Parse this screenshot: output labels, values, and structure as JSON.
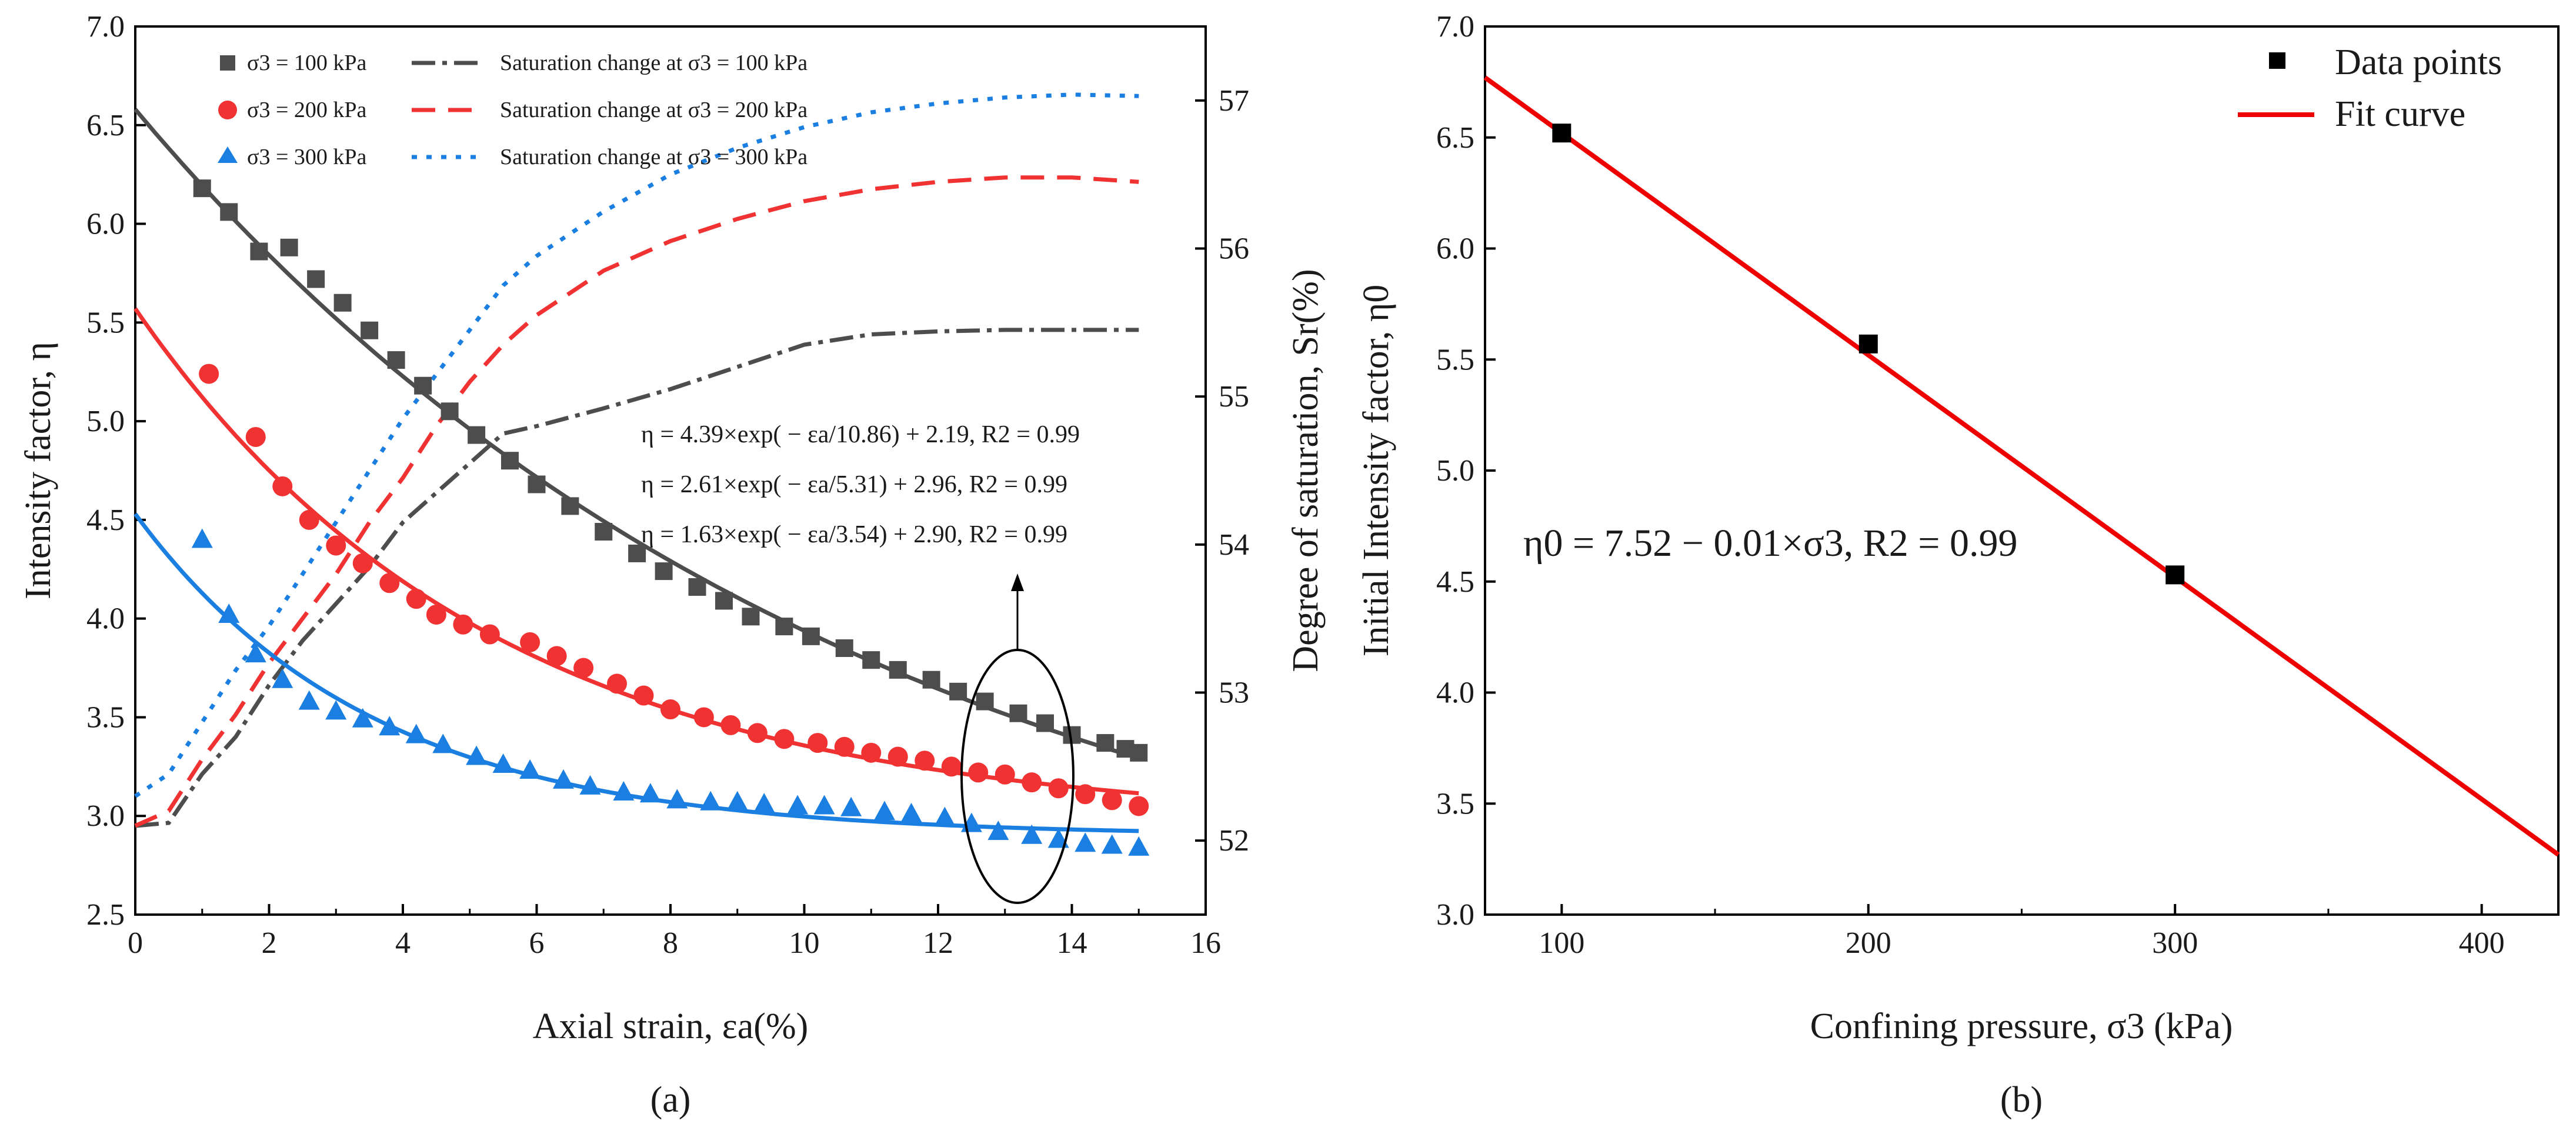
{
  "chart_data": [
    {
      "id": "a",
      "type": "scatter",
      "panel_label": "(a)",
      "xlabel": "Axial strain, εa(%)",
      "ylabel": "Intensity factor, η",
      "y2label": "Degree of saturation, Sr(%)",
      "xlim": [
        0,
        16
      ],
      "ylim": [
        2.5,
        7.0
      ],
      "y2lim": [
        51.5,
        57.5
      ],
      "xticks": [
        "0",
        "2",
        "4",
        "6",
        "8",
        "10",
        "12",
        "14",
        "16"
      ],
      "yticks": [
        "2.5",
        "3.0",
        "3.5",
        "4.0",
        "4.5",
        "5.0",
        "5.5",
        "6.0",
        "6.5",
        "7.0"
      ],
      "y2ticks": [
        "52",
        "53",
        "54",
        "55",
        "56",
        "57"
      ],
      "legend": [
        {
          "label": "σ3 = 100 kPa",
          "marker": "square",
          "color": "#4d4d4d"
        },
        {
          "label": "Saturation change at σ3 = 100 kPa",
          "style": "dash-dot",
          "color": "#4d4d4d"
        },
        {
          "label": "σ3 = 200 kPa",
          "marker": "circle",
          "color": "#f03232"
        },
        {
          "label": "Saturation change at σ3 = 200 kPa",
          "style": "dashed",
          "color": "#f03232"
        },
        {
          "label": "σ3 = 300 kPa",
          "marker": "triangle",
          "color": "#1a7fe0"
        },
        {
          "label": "Saturation change at σ3 = 300 kPa",
          "style": "dotted",
          "color": "#1a7fe0"
        }
      ],
      "series": [
        {
          "name": "σ3 = 100 kPa",
          "color": "#4d4d4d",
          "marker": "square",
          "x": [
            1.0,
            1.4,
            1.85,
            2.3,
            2.7,
            3.1,
            3.5,
            3.9,
            4.3,
            4.7,
            5.1,
            5.6,
            6.0,
            6.5,
            7.0,
            7.5,
            7.9,
            8.4,
            8.8,
            9.2,
            9.7,
            10.1,
            10.6,
            11.0,
            11.4,
            11.9,
            12.3,
            12.7,
            13.2,
            13.6,
            14.0,
            14.5,
            14.8,
            15.0
          ],
          "y": [
            6.18,
            6.06,
            5.86,
            5.88,
            5.72,
            5.6,
            5.46,
            5.31,
            5.18,
            5.05,
            4.93,
            4.8,
            4.68,
            4.57,
            4.44,
            4.33,
            4.24,
            4.16,
            4.09,
            4.01,
            3.96,
            3.91,
            3.85,
            3.79,
            3.74,
            3.69,
            3.63,
            3.58,
            3.52,
            3.47,
            3.41,
            3.37,
            3.34,
            3.32
          ],
          "fit": {
            "a": 4.39,
            "b": 10.86,
            "c": 2.19
          }
        },
        {
          "name": "σ3 = 200 kPa",
          "color": "#f03232",
          "marker": "circle",
          "x": [
            1.1,
            1.8,
            2.2,
            2.6,
            3.0,
            3.4,
            3.8,
            4.2,
            4.5,
            4.9,
            5.3,
            5.9,
            6.3,
            6.7,
            7.2,
            7.6,
            8.0,
            8.5,
            8.9,
            9.3,
            9.7,
            10.2,
            10.6,
            11.0,
            11.4,
            11.8,
            12.2,
            12.6,
            13.0,
            13.4,
            13.8,
            14.2,
            14.6,
            15.0
          ],
          "y": [
            5.24,
            4.92,
            4.67,
            4.5,
            4.37,
            4.28,
            4.18,
            4.1,
            4.02,
            3.97,
            3.92,
            3.88,
            3.81,
            3.75,
            3.67,
            3.61,
            3.54,
            3.5,
            3.46,
            3.42,
            3.39,
            3.37,
            3.35,
            3.32,
            3.3,
            3.28,
            3.25,
            3.22,
            3.21,
            3.17,
            3.14,
            3.11,
            3.08,
            3.05
          ],
          "fit": {
            "a": 2.61,
            "b": 5.31,
            "c": 2.96
          }
        },
        {
          "name": "σ3 = 300 kPa",
          "color": "#1a7fe0",
          "marker": "triangle",
          "x": [
            1.0,
            1.4,
            1.8,
            2.2,
            2.6,
            3.0,
            3.4,
            3.8,
            4.2,
            4.6,
            5.1,
            5.5,
            5.9,
            6.4,
            6.8,
            7.3,
            7.7,
            8.1,
            8.6,
            9.0,
            9.4,
            9.9,
            10.3,
            10.7,
            11.2,
            11.6,
            12.1,
            12.5,
            12.9,
            13.4,
            13.8,
            14.2,
            14.6,
            15.0
          ],
          "y": [
            4.4,
            4.02,
            3.82,
            3.69,
            3.58,
            3.53,
            3.49,
            3.45,
            3.41,
            3.36,
            3.3,
            3.26,
            3.23,
            3.18,
            3.15,
            3.12,
            3.11,
            3.08,
            3.07,
            3.07,
            3.06,
            3.05,
            3.05,
            3.04,
            3.02,
            3.01,
            2.99,
            2.96,
            2.92,
            2.9,
            2.88,
            2.86,
            2.85,
            2.84
          ],
          "fit": {
            "a": 1.63,
            "b": 3.54,
            "c": 2.9
          }
        }
      ],
      "saturation_series": [
        {
          "name": "Saturation change at σ3 = 100 kPa",
          "color": "#4d4d4d",
          "style": "dash-dot",
          "x": [
            0,
            0.5,
            1.0,
            1.5,
            2.0,
            2.5,
            3.0,
            3.5,
            4.0,
            4.5,
            5.0,
            5.5,
            6.0,
            7.0,
            8.0,
            9.0,
            10.0,
            11.0,
            12.0,
            13.0,
            14.0,
            15.0
          ],
          "y": [
            52.1,
            52.12,
            52.45,
            52.7,
            53.05,
            53.35,
            53.6,
            53.85,
            54.15,
            54.35,
            54.55,
            54.75,
            54.8,
            54.92,
            55.05,
            55.2,
            55.35,
            55.42,
            55.44,
            55.45,
            55.45,
            55.45
          ]
        },
        {
          "name": "Saturation change at σ3 = 200 kPa",
          "color": "#f03232",
          "style": "dashed",
          "x": [
            0,
            0.5,
            1.0,
            1.5,
            2.0,
            2.5,
            3.0,
            3.5,
            4.0,
            4.5,
            5.0,
            5.5,
            6.0,
            7.0,
            8.0,
            9.0,
            10.0,
            11.0,
            12.0,
            13.0,
            14.0,
            15.0
          ],
          "y": [
            52.1,
            52.2,
            52.55,
            52.85,
            53.2,
            53.5,
            53.8,
            54.15,
            54.45,
            54.8,
            55.1,
            55.35,
            55.55,
            55.85,
            56.05,
            56.2,
            56.32,
            56.4,
            56.45,
            56.48,
            56.48,
            56.45
          ]
        },
        {
          "name": "Saturation change at σ3 = 300 kPa",
          "color": "#1a7fe0",
          "style": "dotted",
          "x": [
            0,
            0.5,
            1.0,
            1.5,
            2.0,
            2.5,
            3.0,
            3.5,
            4.0,
            4.5,
            5.0,
            5.5,
            6.0,
            7.0,
            8.0,
            9.0,
            10.0,
            11.0,
            12.0,
            13.0,
            14.0,
            15.0
          ],
          "y": [
            52.3,
            52.45,
            52.8,
            53.15,
            53.45,
            53.8,
            54.15,
            54.5,
            54.85,
            55.15,
            55.45,
            55.75,
            55.95,
            56.25,
            56.5,
            56.68,
            56.82,
            56.92,
            56.98,
            57.02,
            57.04,
            57.03
          ]
        }
      ],
      "equations": [
        "η = 4.39×exp( − εa/10.86) + 2.19, R2 = 0.99",
        "η = 2.61×exp( − εa/5.31) + 2.96, R2 = 0.99",
        "η = 1.63×exp( − εa/3.54) + 2.90, R2 = 0.99"
      ],
      "annotation": "ellipse highlighting saturation region near εa ≈ 13%, with upward arrow"
    },
    {
      "id": "b",
      "type": "scatter",
      "panel_label": "(b)",
      "xlabel": "Confining pressure, σ3 (kPa)",
      "ylabel": "Initial Intensity factor, η0",
      "xlim": [
        75,
        425
      ],
      "ylim": [
        3.0,
        7.0
      ],
      "xticks": [
        "100",
        "200",
        "300",
        "400"
      ],
      "yticks": [
        "3.0",
        "3.5",
        "4.0",
        "4.5",
        "5.0",
        "5.5",
        "6.0",
        "6.5",
        "7.0"
      ],
      "legend": [
        {
          "label": "Data points",
          "marker": "square",
          "color": "#000000"
        },
        {
          "label": "Fit curve",
          "style": "solid",
          "color": "#ee0000"
        }
      ],
      "series": [
        {
          "name": "Data points",
          "x": [
            100,
            200,
            300
          ],
          "y": [
            6.52,
            5.57,
            4.53
          ],
          "color": "#000000"
        }
      ],
      "fit": {
        "intercept": 7.52,
        "slope": -0.01,
        "color": "#ee0000"
      },
      "equation": "η0 = 7.52 − 0.01×σ3, R2 = 0.99"
    }
  ]
}
